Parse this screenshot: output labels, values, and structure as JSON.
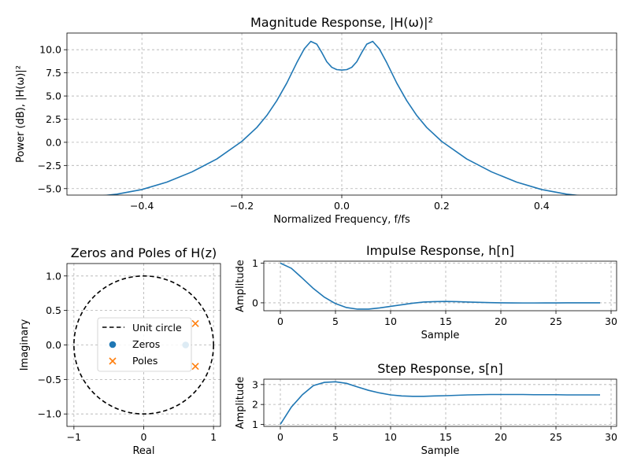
{
  "colors": {
    "line": "#1f77b4",
    "poles": "#ff7f0e",
    "zeros": "#1f77b4",
    "grid": "#b0b0b0"
  },
  "chart_data": [
    {
      "id": "magnitude",
      "type": "line",
      "title": "Magnitude Response, |H(ω)|²",
      "xlabel": "Normalized Frequency, f/fs",
      "ylabel": "Power (dB), |H(ω)|²",
      "xlim": [
        -0.55,
        0.55
      ],
      "ylim": [
        -5.7,
        11.8
      ],
      "xticks": [
        -0.4,
        -0.2,
        0.0,
        0.2,
        0.4
      ],
      "xtick_labels": [
        "−0.4",
        "−0.2",
        "0.0",
        "0.2",
        "0.4"
      ],
      "yticks": [
        -5.0,
        -2.5,
        0.0,
        2.5,
        5.0,
        7.5,
        10.0
      ],
      "ytick_labels": [
        "−5.0",
        "−2.5",
        "0.0",
        "2.5",
        "5.0",
        "7.5",
        "10.0"
      ],
      "x": [
        -0.5,
        -0.45,
        -0.4,
        -0.35,
        -0.3,
        -0.25,
        -0.2,
        -0.17,
        -0.15,
        -0.13,
        -0.11,
        -0.09,
        -0.075,
        -0.062,
        -0.05,
        -0.04,
        -0.03,
        -0.02,
        -0.01,
        0,
        0.01,
        0.02,
        0.03,
        0.04,
        0.05,
        0.062,
        0.075,
        0.09,
        0.11,
        0.13,
        0.15,
        0.17,
        0.2,
        0.25,
        0.3,
        0.35,
        0.4,
        0.45,
        0.5
      ],
      "y": [
        -5.9,
        -5.6,
        -5.1,
        -4.3,
        -3.2,
        -1.8,
        0.1,
        1.6,
        2.9,
        4.5,
        6.4,
        8.6,
        10.1,
        10.9,
        10.6,
        9.7,
        8.7,
        8.1,
        7.85,
        7.8,
        7.85,
        8.1,
        8.7,
        9.7,
        10.6,
        10.9,
        10.1,
        8.6,
        6.4,
        4.5,
        2.9,
        1.6,
        0.1,
        -1.8,
        -3.2,
        -4.3,
        -5.1,
        -5.6,
        -5.9
      ]
    },
    {
      "id": "pole-zero",
      "type": "scatter",
      "title": "Zeros and Poles of H(z)",
      "xlabel": "Real",
      "ylabel": "Imaginary",
      "xlim": [
        -1.1,
        1.1
      ],
      "ylim": [
        -1.18,
        1.18
      ],
      "xticks": [
        -1,
        0,
        1
      ],
      "xtick_labels": [
        "−1",
        "0",
        "1"
      ],
      "yticks": [
        -1.0,
        -0.5,
        0.0,
        0.5,
        1.0
      ],
      "ytick_labels": [
        "−1.0",
        "−0.5",
        "0.0",
        "0.5",
        "1.0"
      ],
      "unit_circle": {
        "radius": 1,
        "label": "Unit circle"
      },
      "zeros": {
        "label": "Zeros",
        "points": [
          [
            0.6,
            0.0
          ]
        ]
      },
      "poles": {
        "label": "Poles",
        "points": [
          [
            0.74,
            0.31
          ],
          [
            0.74,
            -0.31
          ]
        ]
      },
      "legend": [
        "Unit circle",
        "Zeros",
        "Poles"
      ],
      "legend_position": "center"
    },
    {
      "id": "impulse",
      "type": "line",
      "title": "Impulse Response, h[n]",
      "xlabel": "Sample",
      "ylabel": "Amplitude",
      "xlim": [
        -1.5,
        30.5
      ],
      "ylim": [
        -0.2,
        1.05
      ],
      "xticks": [
        0,
        5,
        10,
        15,
        20,
        25,
        30
      ],
      "xtick_labels": [
        "0",
        "5",
        "10",
        "15",
        "20",
        "25",
        "30"
      ],
      "yticks": [
        0,
        1
      ],
      "ytick_labels": [
        "0",
        "1"
      ],
      "x": [
        0,
        1,
        2,
        3,
        4,
        5,
        6,
        7,
        8,
        9,
        10,
        11,
        12,
        13,
        14,
        15,
        16,
        17,
        18,
        19,
        20,
        21,
        22,
        23,
        24,
        25,
        26,
        27,
        28,
        29
      ],
      "y": [
        1.0,
        0.87,
        0.62,
        0.36,
        0.14,
        -0.02,
        -0.12,
        -0.16,
        -0.16,
        -0.13,
        -0.09,
        -0.05,
        -0.01,
        0.02,
        0.03,
        0.035,
        0.03,
        0.02,
        0.012,
        0.005,
        0.0,
        -0.003,
        -0.004,
        -0.004,
        -0.003,
        -0.002,
        -0.001,
        0.0,
        0.0,
        0.0
      ]
    },
    {
      "id": "step",
      "type": "line",
      "title": "Step Response, s[n]",
      "xlabel": "Sample",
      "ylabel": "Amplitude",
      "xlim": [
        -1.5,
        30.5
      ],
      "ylim": [
        0.9,
        3.27
      ],
      "xticks": [
        0,
        5,
        10,
        15,
        20,
        25,
        30
      ],
      "xtick_labels": [
        "0",
        "5",
        "10",
        "15",
        "20",
        "25",
        "30"
      ],
      "yticks": [
        1,
        2,
        3
      ],
      "ytick_labels": [
        "1",
        "2",
        "3"
      ],
      "x": [
        0,
        1,
        2,
        3,
        4,
        5,
        6,
        7,
        8,
        9,
        10,
        11,
        12,
        13,
        14,
        15,
        16,
        17,
        18,
        19,
        20,
        21,
        22,
        23,
        24,
        25,
        26,
        27,
        28,
        29
      ],
      "y": [
        1.0,
        1.87,
        2.49,
        2.95,
        3.11,
        3.14,
        3.06,
        2.88,
        2.71,
        2.58,
        2.48,
        2.43,
        2.41,
        2.41,
        2.43,
        2.44,
        2.46,
        2.48,
        2.49,
        2.5,
        2.5,
        2.5,
        2.5,
        2.49,
        2.49,
        2.49,
        2.48,
        2.48,
        2.48,
        2.48
      ]
    }
  ]
}
